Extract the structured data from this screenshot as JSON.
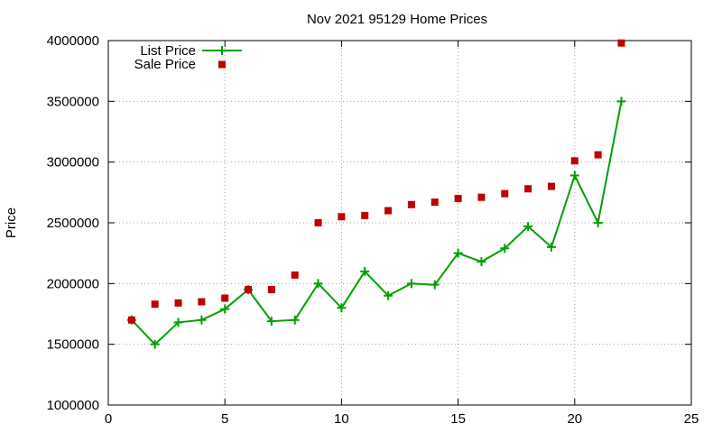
{
  "chart_data": {
    "type": "line",
    "title": "Nov 2021 95129 Home Prices",
    "xlabel": "",
    "ylabel": "Price",
    "xlim": [
      0,
      25
    ],
    "ylim": [
      1000000,
      4000000
    ],
    "xticks": [
      0,
      5,
      10,
      15,
      20,
      25
    ],
    "yticks": [
      1000000,
      1500000,
      2000000,
      2500000,
      3000000,
      3500000,
      4000000
    ],
    "xtick_labels": [
      "0",
      "5",
      "10",
      "15",
      "20",
      "25"
    ],
    "ytick_labels": [
      "1000000",
      "1500000",
      "2000000",
      "2500000",
      "3000000",
      "3500000",
      "4000000"
    ],
    "grid": true,
    "legend_position": "top-left",
    "series": [
      {
        "name": "List Price",
        "style": "linespoints",
        "color": "#00a000",
        "x": [
          1,
          2,
          3,
          4,
          5,
          6,
          7,
          8,
          9,
          10,
          11,
          12,
          13,
          14,
          15,
          16,
          17,
          18,
          19,
          20,
          21,
          22
        ],
        "y": [
          1700000,
          1500000,
          1680000,
          1700000,
          1790000,
          1950000,
          1690000,
          1700000,
          2000000,
          1800000,
          2100000,
          1900000,
          2000000,
          1990000,
          2250000,
          2180000,
          2290000,
          2470000,
          2300000,
          2890000,
          2500000,
          3500000
        ]
      },
      {
        "name": "Sale Price",
        "style": "points",
        "color": "#c00000",
        "x": [
          1,
          2,
          3,
          4,
          5,
          6,
          7,
          8,
          9,
          10,
          11,
          12,
          13,
          14,
          15,
          16,
          17,
          18,
          19,
          20,
          21,
          22
        ],
        "y": [
          1700000,
          1830000,
          1840000,
          1850000,
          1880000,
          1950000,
          1950000,
          2070000,
          2500000,
          2550000,
          2560000,
          2600000,
          2650000,
          2670000,
          2700000,
          2710000,
          2740000,
          2780000,
          2800000,
          3010000,
          3060000,
          3980000
        ]
      }
    ]
  }
}
